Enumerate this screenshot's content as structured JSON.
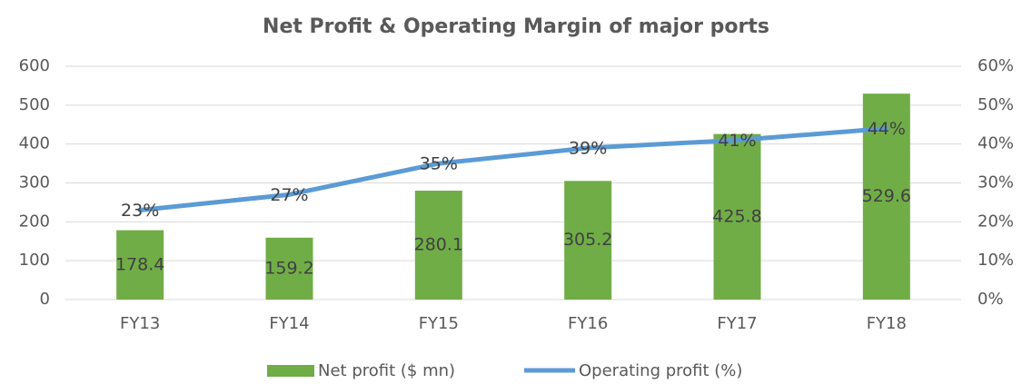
{
  "chart_data": {
    "type": "bar",
    "title": "Net Profit & Operating Margin of major ports",
    "categories": [
      "FY13",
      "FY14",
      "FY15",
      "FY16",
      "FY17",
      "FY18"
    ],
    "series": [
      {
        "name": "Net profit ($ mn)",
        "type": "bar",
        "color": "#70ad47",
        "values": [
          178.4,
          159.2,
          280.1,
          305.2,
          425.8,
          529.6
        ]
      },
      {
        "name": "Operating profit (%)",
        "type": "line",
        "axis": "y2",
        "color": "#5b9bd5",
        "values": [
          23,
          27,
          35,
          39,
          41,
          44
        ],
        "value_labels": [
          "23%",
          "27%",
          "35%",
          "39%",
          "41%",
          "44%"
        ]
      }
    ],
    "ylim": [
      0,
      600
    ],
    "yticks": [
      0,
      100,
      200,
      300,
      400,
      500,
      600
    ],
    "y2lim": [
      0,
      60
    ],
    "y2ticks": [
      {
        "value": 0,
        "label": "0%"
      },
      {
        "value": 10,
        "label": "10%"
      },
      {
        "value": 20,
        "label": "20%"
      },
      {
        "value": 30,
        "label": "30%"
      },
      {
        "value": 40,
        "label": "40%"
      },
      {
        "value": 50,
        "label": "50%"
      },
      {
        "value": 60,
        "label": "60%"
      }
    ],
    "grid": true,
    "legend": "bottom"
  }
}
